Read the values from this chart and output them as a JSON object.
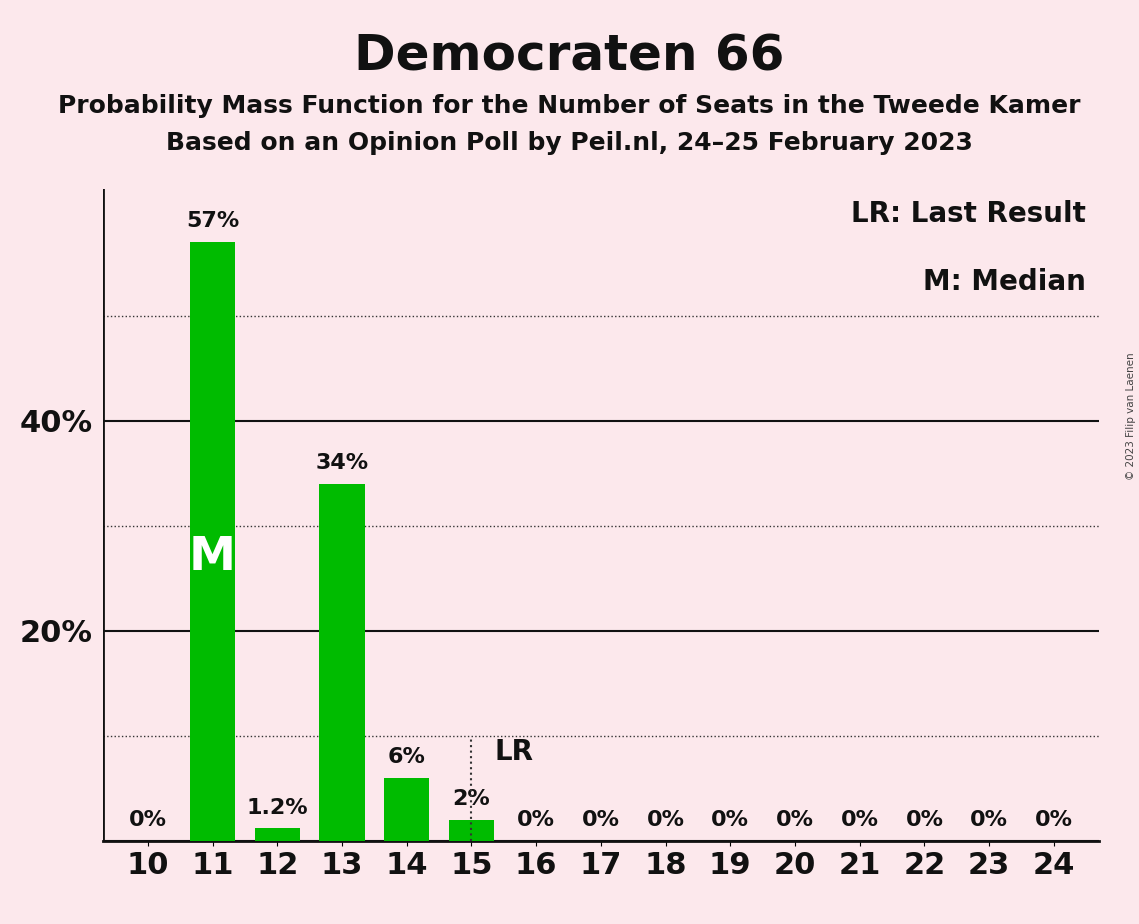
{
  "title": "Democraten 66",
  "subtitle1": "Probability Mass Function for the Number of Seats in the Tweede Kamer",
  "subtitle2": "Based on an Opinion Poll by Peil.nl, 24–25 February 2023",
  "copyright_text": "© 2023 Filip van Laenen",
  "seats": [
    10,
    11,
    12,
    13,
    14,
    15,
    16,
    17,
    18,
    19,
    20,
    21,
    22,
    23,
    24
  ],
  "probabilities": [
    0,
    57,
    1.2,
    34,
    6,
    2,
    0,
    0,
    0,
    0,
    0,
    0,
    0,
    0,
    0
  ],
  "bar_color": "#00bb00",
  "background_color": "#fce8ec",
  "median_seat": 11,
  "last_result_seat": 15,
  "legend_lr_label": "LR: Last Result",
  "legend_m_label": "M: Median",
  "lr_label": "LR",
  "m_label": "M",
  "ylabel_ticks": [
    20,
    40
  ],
  "ylabel_ticks_with_zero": [
    0,
    20,
    40
  ],
  "dotted_ticks": [
    10,
    30,
    50
  ],
  "ylim": [
    0,
    62
  ],
  "title_fontsize": 36,
  "subtitle_fontsize": 18,
  "bar_label_fontsize": 16,
  "tick_label_fontsize": 22,
  "legend_fontsize": 20,
  "m_fontsize": 34
}
